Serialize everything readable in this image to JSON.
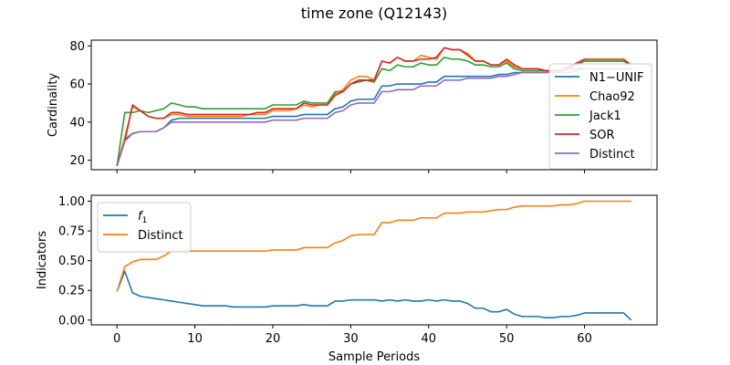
{
  "figure": {
    "title": "time zone (Q12143)"
  },
  "colors": {
    "blue": "#1f77b4",
    "orange": "#ff7f0e",
    "green": "#2ca02c",
    "red": "#d62728",
    "purple": "#9467bd"
  },
  "chart_data": [
    {
      "type": "line",
      "ylabel": "Cardinality",
      "xlabel": "",
      "xlim": [
        -3.3,
        69.3
      ],
      "ylim": [
        15,
        83
      ],
      "x_ticks": [
        0,
        10,
        20,
        30,
        40,
        50,
        60
      ],
      "x_tick_labels": [],
      "y_ticks": [
        20,
        40,
        60,
        80
      ],
      "y_tick_labels": [
        "20",
        "40",
        "60",
        "80"
      ],
      "legend_placement": "center-right",
      "x": [
        0,
        1,
        2,
        3,
        4,
        5,
        6,
        7,
        8,
        9,
        10,
        11,
        12,
        13,
        14,
        15,
        16,
        17,
        18,
        19,
        20,
        21,
        22,
        23,
        24,
        25,
        26,
        27,
        28,
        29,
        30,
        31,
        32,
        33,
        34,
        35,
        36,
        37,
        38,
        39,
        40,
        41,
        42,
        43,
        44,
        45,
        46,
        47,
        48,
        49,
        50,
        51,
        52,
        53,
        54,
        55,
        56,
        57,
        58,
        59,
        60,
        61,
        62,
        63,
        64,
        65,
        66
      ],
      "series": [
        {
          "name": "N1−UNIF",
          "color": "blue",
          "values": [
            17,
            31,
            34,
            35,
            35,
            35,
            37,
            41,
            42,
            42,
            42,
            42,
            42,
            42,
            42,
            42,
            42,
            42,
            42,
            42,
            43,
            43,
            43,
            43,
            44,
            44,
            44,
            44,
            47,
            48,
            51,
            52,
            52,
            52,
            59,
            59,
            60,
            60,
            60,
            60,
            61,
            61,
            64,
            64,
            64,
            64,
            64,
            64,
            64,
            65,
            65,
            66,
            66,
            66,
            66,
            66,
            67,
            67,
            68,
            68,
            68,
            68,
            68,
            68,
            68,
            68,
            68
          ]
        },
        {
          "name": "Chao92",
          "color": "orange",
          "values": [
            17,
            32,
            48,
            46,
            43,
            42,
            42,
            44,
            44,
            43,
            43,
            43,
            43,
            43,
            43,
            43,
            43,
            44,
            44,
            44,
            46,
            46,
            46,
            47,
            49,
            48,
            49,
            49,
            55,
            57,
            62,
            64,
            64,
            62,
            72,
            71,
            74,
            72,
            72,
            75,
            74,
            73,
            79,
            78,
            78,
            76,
            72,
            72,
            70,
            70,
            72,
            69,
            68,
            68,
            68,
            67,
            67,
            67,
            68,
            71,
            72,
            72,
            72,
            72,
            72,
            72,
            70
          ]
        },
        {
          "name": "Jack1",
          "color": "green",
          "values": [
            17,
            45,
            45,
            46,
            45,
            46,
            47,
            50,
            49,
            48,
            48,
            47,
            47,
            47,
            47,
            47,
            47,
            47,
            47,
            47,
            49,
            49,
            49,
            49,
            51,
            50,
            50,
            50,
            56,
            56,
            60,
            61,
            62,
            61,
            68,
            67,
            70,
            69,
            69,
            71,
            70,
            70,
            74,
            73,
            73,
            72,
            70,
            70,
            69,
            69,
            71,
            68,
            67,
            67,
            67,
            67,
            67,
            67,
            69,
            70,
            72,
            72,
            72,
            72,
            72,
            72,
            70
          ]
        },
        {
          "name": "SOR",
          "color": "red",
          "values": [
            17,
            30,
            49,
            46,
            43,
            42,
            42,
            45,
            45,
            44,
            44,
            44,
            44,
            44,
            44,
            44,
            44,
            44,
            45,
            45,
            47,
            47,
            47,
            47,
            50,
            49,
            49,
            49,
            54,
            56,
            60,
            62,
            62,
            62,
            72,
            71,
            74,
            72,
            72,
            73,
            73,
            74,
            79,
            78,
            78,
            75,
            72,
            72,
            70,
            70,
            73,
            70,
            68,
            68,
            68,
            67,
            67,
            67,
            69,
            71,
            73,
            73,
            73,
            73,
            73,
            73,
            70
          ]
        },
        {
          "name": "Distinct",
          "color": "purple",
          "values": [
            17,
            30,
            34,
            35,
            35,
            35,
            37,
            40,
            40,
            40,
            40,
            40,
            40,
            40,
            40,
            40,
            40,
            40,
            40,
            40,
            41,
            41,
            41,
            41,
            42,
            42,
            42,
            42,
            45,
            46,
            49,
            50,
            50,
            50,
            56,
            56,
            57,
            57,
            57,
            59,
            59,
            59,
            62,
            62,
            62,
            63,
            63,
            63,
            63,
            64,
            64,
            65,
            66,
            66,
            66,
            66,
            66,
            66,
            66,
            67,
            68,
            68,
            68,
            68,
            68,
            68,
            68
          ]
        }
      ]
    },
    {
      "type": "line",
      "ylabel": "Indicators",
      "xlabel": "Sample Periods",
      "xlim": [
        -3.3,
        69.3
      ],
      "ylim": [
        -0.04,
        1.05
      ],
      "x_ticks": [
        0,
        10,
        20,
        30,
        40,
        50,
        60
      ],
      "x_tick_labels": [
        "0",
        "10",
        "20",
        "30",
        "40",
        "50",
        "60"
      ],
      "y_ticks": [
        0.0,
        0.25,
        0.5,
        0.75,
        1.0
      ],
      "y_tick_labels": [
        "0.00",
        "0.25",
        "0.50",
        "0.75",
        "1.00"
      ],
      "legend_placement": "upper-left",
      "x": [
        0,
        1,
        2,
        3,
        4,
        5,
        6,
        7,
        8,
        9,
        10,
        11,
        12,
        13,
        14,
        15,
        16,
        17,
        18,
        19,
        20,
        21,
        22,
        23,
        24,
        25,
        26,
        27,
        28,
        29,
        30,
        31,
        32,
        33,
        34,
        35,
        36,
        37,
        38,
        39,
        40,
        41,
        42,
        43,
        44,
        45,
        46,
        47,
        48,
        49,
        50,
        51,
        52,
        53,
        54,
        55,
        56,
        57,
        58,
        59,
        60,
        61,
        62,
        63,
        64,
        65,
        66
      ],
      "series": [
        {
          "name": "f",
          "name_sub": "1",
          "color": "blue",
          "values": [
            0.24,
            0.41,
            0.23,
            0.2,
            0.19,
            0.18,
            0.17,
            0.16,
            0.15,
            0.14,
            0.13,
            0.12,
            0.12,
            0.12,
            0.12,
            0.11,
            0.11,
            0.11,
            0.11,
            0.11,
            0.12,
            0.12,
            0.12,
            0.12,
            0.13,
            0.12,
            0.12,
            0.12,
            0.16,
            0.16,
            0.17,
            0.17,
            0.17,
            0.17,
            0.16,
            0.17,
            0.16,
            0.17,
            0.16,
            0.16,
            0.17,
            0.16,
            0.17,
            0.16,
            0.16,
            0.14,
            0.1,
            0.1,
            0.07,
            0.07,
            0.09,
            0.05,
            0.03,
            0.03,
            0.03,
            0.02,
            0.02,
            0.03,
            0.03,
            0.04,
            0.06,
            0.06,
            0.06,
            0.06,
            0.06,
            0.06,
            0.0
          ]
        },
        {
          "name": "Distinct",
          "color": "orange",
          "values": [
            0.24,
            0.45,
            0.49,
            0.51,
            0.51,
            0.51,
            0.54,
            0.58,
            0.58,
            0.58,
            0.58,
            0.58,
            0.58,
            0.58,
            0.58,
            0.58,
            0.58,
            0.58,
            0.58,
            0.58,
            0.59,
            0.59,
            0.59,
            0.59,
            0.61,
            0.61,
            0.61,
            0.61,
            0.65,
            0.67,
            0.71,
            0.72,
            0.72,
            0.72,
            0.82,
            0.82,
            0.84,
            0.84,
            0.84,
            0.86,
            0.86,
            0.86,
            0.9,
            0.9,
            0.9,
            0.91,
            0.91,
            0.91,
            0.92,
            0.93,
            0.93,
            0.95,
            0.96,
            0.96,
            0.96,
            0.96,
            0.96,
            0.97,
            0.97,
            0.98,
            1.0,
            1.0,
            1.0,
            1.0,
            1.0,
            1.0,
            1.0
          ]
        }
      ]
    }
  ]
}
